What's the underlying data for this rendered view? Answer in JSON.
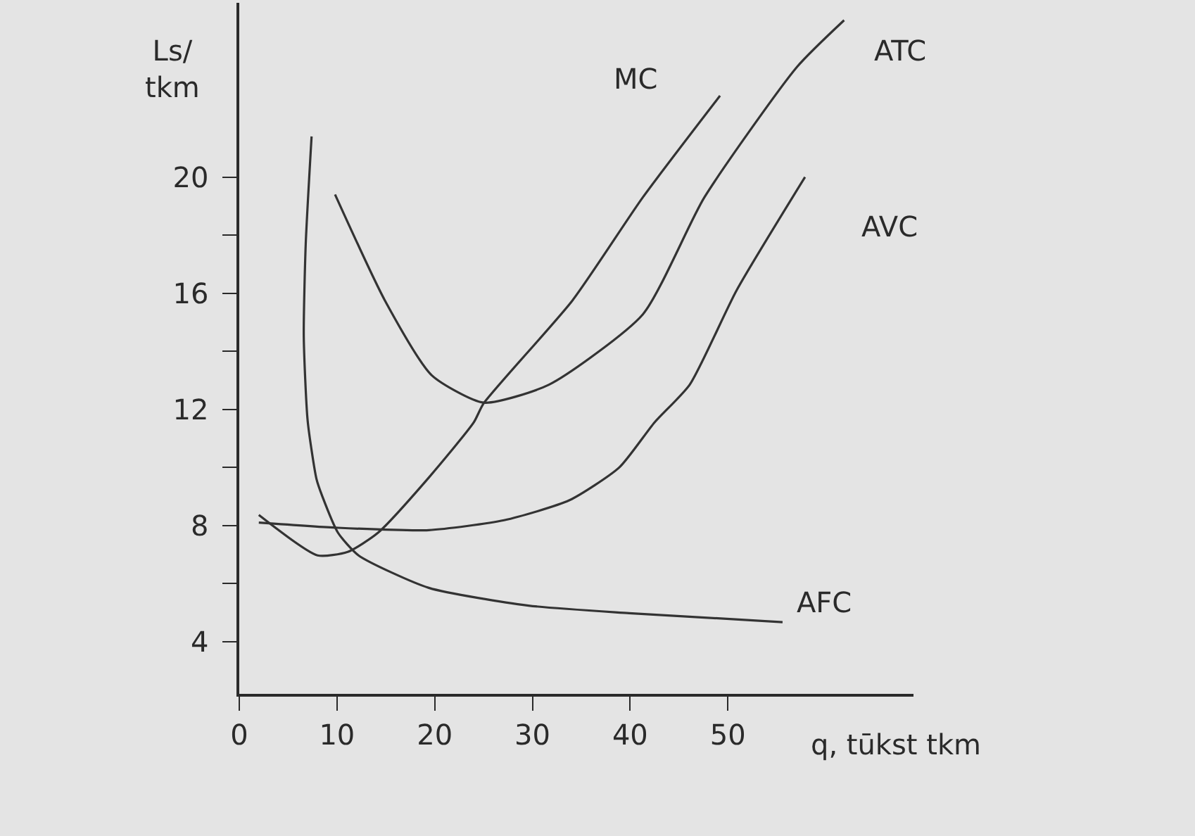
{
  "chart_data": {
    "type": "line",
    "xlabel": "q, tūkst tkm",
    "ylabel": "Ls/\ntkm",
    "xlim": [
      0,
      69
    ],
    "ylim": [
      2.2,
      26
    ],
    "xticks": [
      0,
      10,
      20,
      30,
      40,
      50
    ],
    "yticks": [
      4,
      {
        "value": 6,
        "label": null
      },
      8,
      {
        "value": 10,
        "label": null
      },
      12,
      {
        "value": 14,
        "label": null
      },
      16,
      {
        "value": 18,
        "label": null
      },
      20
    ],
    "grid": false,
    "legend": false,
    "marker": "none",
    "line_style": "solid",
    "series": [
      {
        "name": "MC",
        "color": "#333333",
        "x": [
          2.0,
          8.0,
          11.1,
          14.2,
          19.4,
          24.0,
          25.0,
          34.1,
          41.3,
          49.2
        ],
        "values": [
          8.36,
          6.97,
          7.09,
          7.75,
          9.65,
          11.55,
          12.2,
          15.75,
          19.3,
          22.8
        ]
      },
      {
        "name": "ATC",
        "color": "#333333",
        "x": [
          9.8,
          14.9,
          19.7,
          25.0,
          31.7,
          41.3,
          47.6,
          57.1,
          61.9
        ],
        "values": [
          19.4,
          15.75,
          13.17,
          12.23,
          12.85,
          15.27,
          19.3,
          23.8,
          25.4
        ]
      },
      {
        "name": "AVC",
        "color": "#333333",
        "x": [
          2.0,
          10.1,
          19.4,
          27.1,
          33.8,
          38.9,
          42.5,
          46.1,
          50.9,
          57.9
        ],
        "values": [
          8.1,
          7.92,
          7.84,
          8.18,
          8.87,
          10.0,
          11.55,
          12.85,
          16.1,
          20.0
        ]
      },
      {
        "name": "AFC",
        "color": "#333333",
        "x": [
          7.4,
          6.8,
          6.6,
          7.0,
          7.9,
          8.5,
          10.1,
          12.2,
          19.4,
          29.6,
          39.9,
          55.6
        ],
        "values": [
          21.4,
          17.7,
          14.5,
          11.6,
          9.6,
          9.0,
          7.75,
          6.97,
          5.85,
          5.24,
          4.98,
          4.67
        ]
      }
    ]
  }
}
